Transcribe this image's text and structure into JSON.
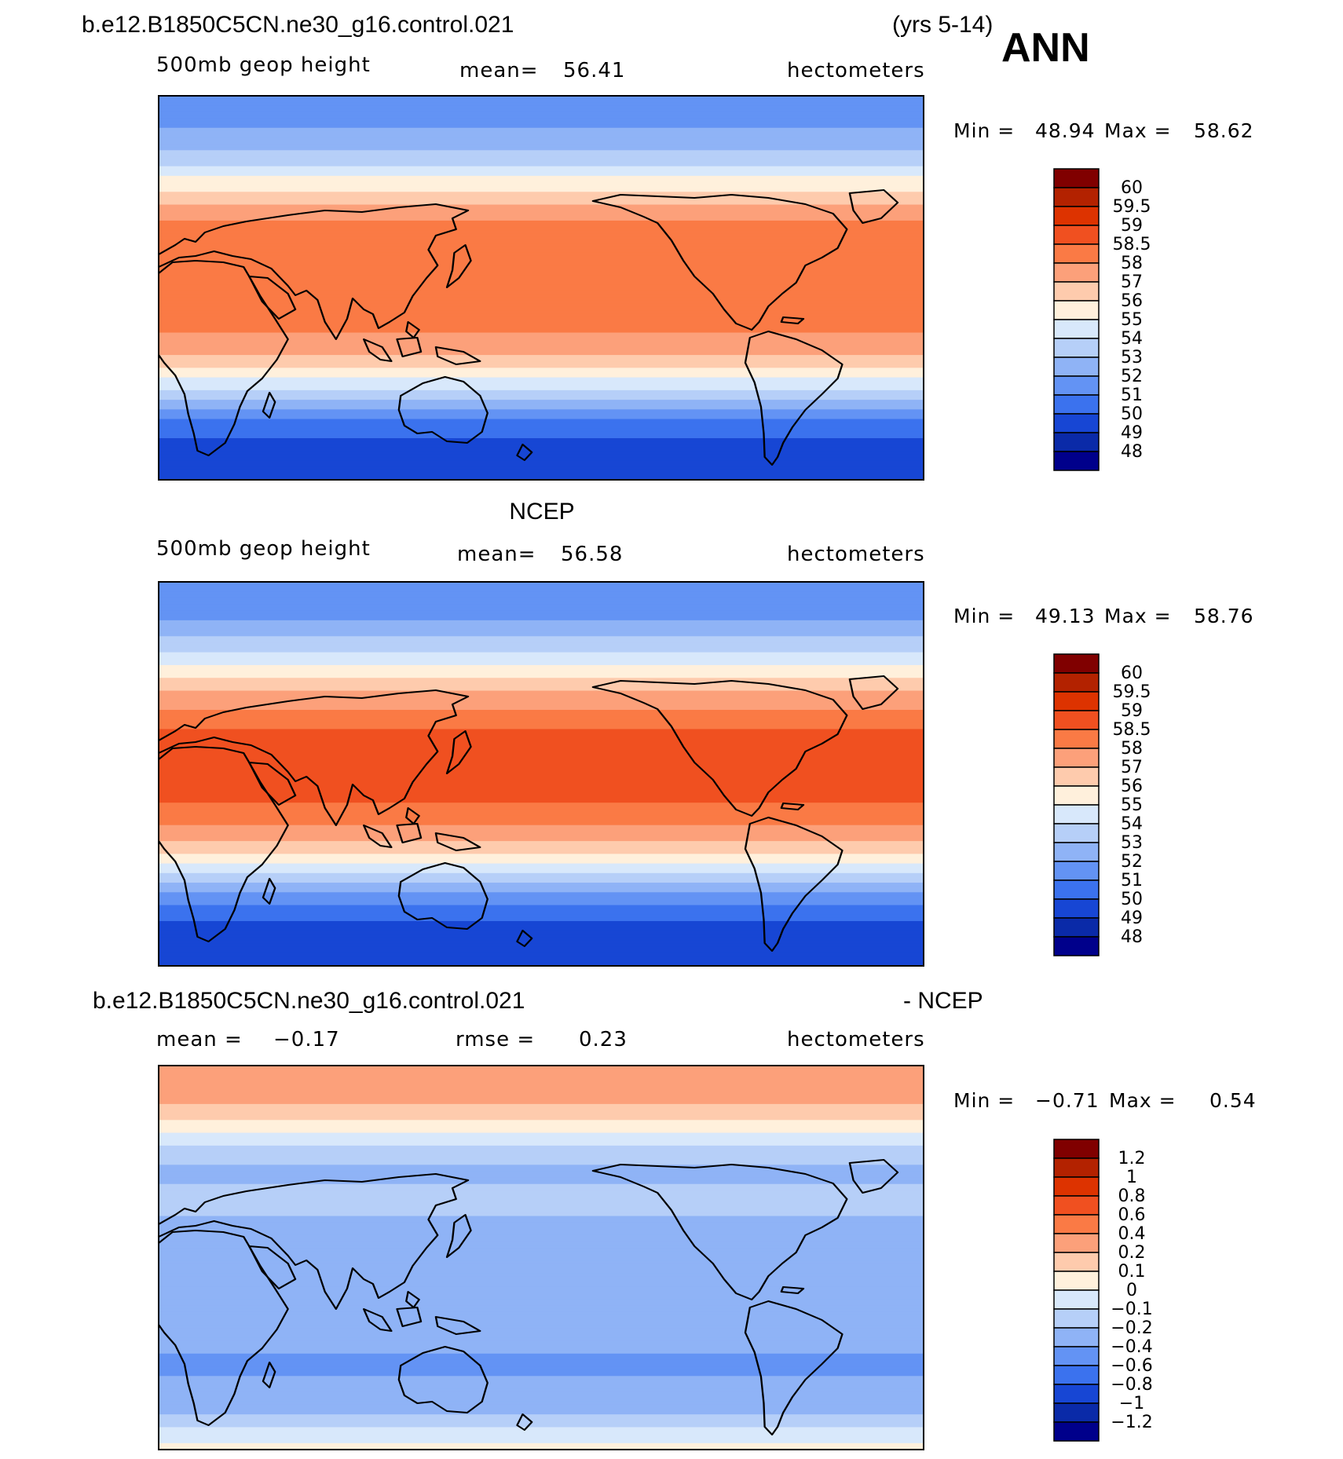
{
  "header": {
    "case_title": "b.e12.B1850C5CN.ne30_g16.control.021",
    "years": "(yrs 5-14)",
    "season": "ANN"
  },
  "chart_data": [
    {
      "type": "heatmap",
      "panel": "model",
      "title": "b.e12.B1850C5CN.ne30_g16.control.021",
      "variable": "500mb geop height",
      "units": "hectometers",
      "mean_label": "mean=",
      "mean": "56.41",
      "min_label": "Min =",
      "min": "48.94",
      "max_label": "Max =",
      "max": "58.62",
      "levels": [
        "60",
        "59.5",
        "59",
        "58.5",
        "58",
        "57",
        "56",
        "55",
        "54",
        "53",
        "52",
        "51",
        "50",
        "49",
        "48"
      ],
      "colors": [
        "#800000",
        "#b32200",
        "#dd3300",
        "#f05020",
        "#fa7a45",
        "#fca07a",
        "#fecbad",
        "#fff0dc",
        "#d8e8fb",
        "#b6cff8",
        "#8fb3f6",
        "#6393f4",
        "#3b72ee",
        "#1746d4",
        "#0a2aa8",
        "#00008b"
      ],
      "zonal_profile": {
        "lat": [
          90,
          80,
          70,
          60,
          50,
          40,
          30,
          20,
          10,
          0,
          -10,
          -20,
          -30,
          -40,
          -50,
          -60,
          -70,
          -80,
          -90
        ],
        "value": [
          51.3,
          51.5,
          52.4,
          53.6,
          55.3,
          56.9,
          58.1,
          58.4,
          58.3,
          58.2,
          58.3,
          58.1,
          57.2,
          55.6,
          53.4,
          51.2,
          50.0,
          49.4,
          49.1
        ]
      }
    },
    {
      "type": "heatmap",
      "panel": "obs",
      "title": "NCEP",
      "variable": "500mb geop height",
      "units": "hectometers",
      "mean_label": "mean=",
      "mean": "56.58",
      "min_label": "Min =",
      "min": "49.13",
      "max_label": "Max =",
      "max": "58.76",
      "levels": [
        "60",
        "59.5",
        "59",
        "58.5",
        "58",
        "57",
        "56",
        "55",
        "54",
        "53",
        "52",
        "51",
        "50",
        "49",
        "48"
      ],
      "colors": [
        "#800000",
        "#b32200",
        "#dd3300",
        "#f05020",
        "#fa7a45",
        "#fca07a",
        "#fecbad",
        "#fff0dc",
        "#d8e8fb",
        "#b6cff8",
        "#8fb3f6",
        "#6393f4",
        "#3b72ee",
        "#1746d4",
        "#0a2aa8",
        "#00008b"
      ],
      "zonal_profile": {
        "lat": [
          90,
          80,
          70,
          60,
          50,
          40,
          30,
          20,
          10,
          0,
          -10,
          -20,
          -30,
          -40,
          -50,
          -60,
          -70,
          -80,
          -90
        ],
        "value": [
          51.0,
          51.3,
          52.2,
          53.5,
          55.2,
          56.8,
          58.0,
          58.6,
          58.6,
          58.6,
          58.6,
          58.3,
          57.4,
          55.6,
          53.3,
          51.1,
          49.9,
          49.6,
          49.4
        ]
      }
    },
    {
      "type": "heatmap",
      "panel": "difference",
      "title_left": "b.e12.B1850C5CN.ne30_g16.control.021",
      "title_right": "- NCEP",
      "units": "hectometers",
      "mean_label": "mean =",
      "mean": "−0.17",
      "rmse_label": "rmse =",
      "rmse": "0.23",
      "min_label": "Min =",
      "min": "−0.71",
      "max_label": "Max =",
      "max": "0.54",
      "levels": [
        "1.2",
        "1",
        "0.8",
        "0.6",
        "0.4",
        "0.2",
        "0.1",
        "0",
        "−0.1",
        "−0.2",
        "−0.4",
        "−0.6",
        "−0.8",
        "−1",
        "−1.2"
      ],
      "colors": [
        "#800000",
        "#b32200",
        "#dd3300",
        "#f05020",
        "#fa7a45",
        "#fca07a",
        "#fecbad",
        "#fff0dc",
        "#d8e8fb",
        "#b6cff8",
        "#8fb3f6",
        "#6393f4",
        "#3b72ee",
        "#1746d4",
        "#0a2aa8",
        "#00008b"
      ],
      "zonal_profile": {
        "lat": [
          90,
          80,
          70,
          60,
          50,
          40,
          30,
          20,
          10,
          0,
          -10,
          -20,
          -30,
          -40,
          -50,
          -60,
          -70,
          -80,
          -90
        ],
        "value": [
          0.35,
          0.3,
          0.18,
          0.02,
          -0.15,
          -0.22,
          -0.18,
          -0.2,
          -0.25,
          -0.22,
          -0.25,
          -0.25,
          -0.2,
          -0.35,
          -0.45,
          -0.35,
          -0.25,
          -0.1,
          0.05
        ]
      }
    }
  ]
}
